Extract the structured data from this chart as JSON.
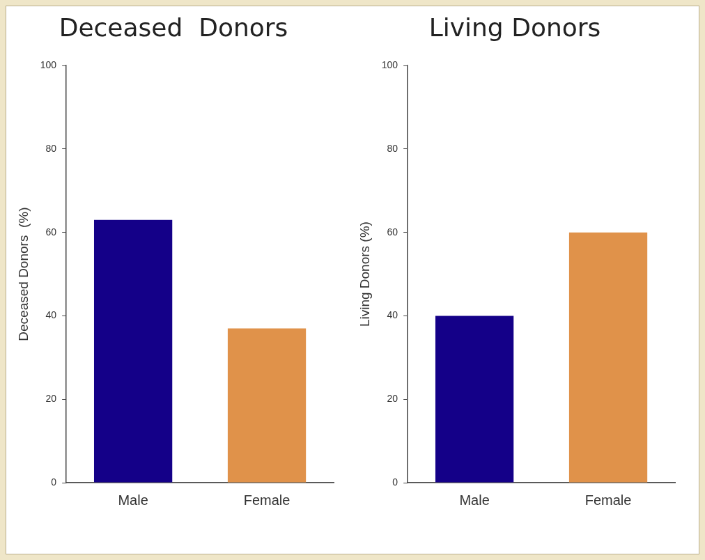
{
  "chart_data": [
    {
      "type": "bar",
      "title": "Deceased  Donors",
      "ylabel": "Deceased Donors  (%)",
      "categories": [
        "Male",
        "Female"
      ],
      "values": [
        63,
        37
      ],
      "colors": [
        "#140088",
        "#e0924a"
      ],
      "ylim": [
        0,
        100
      ],
      "yticks": [
        0,
        20,
        40,
        60,
        80,
        100
      ]
    },
    {
      "type": "bar",
      "title": "Living Donors",
      "ylabel": "Living Donors (%)",
      "categories": [
        "Male",
        "Female"
      ],
      "values": [
        40,
        60
      ],
      "colors": [
        "#140088",
        "#e0924a"
      ],
      "ylim": [
        0,
        100
      ],
      "yticks": [
        0,
        20,
        40,
        60,
        80,
        100
      ]
    }
  ]
}
